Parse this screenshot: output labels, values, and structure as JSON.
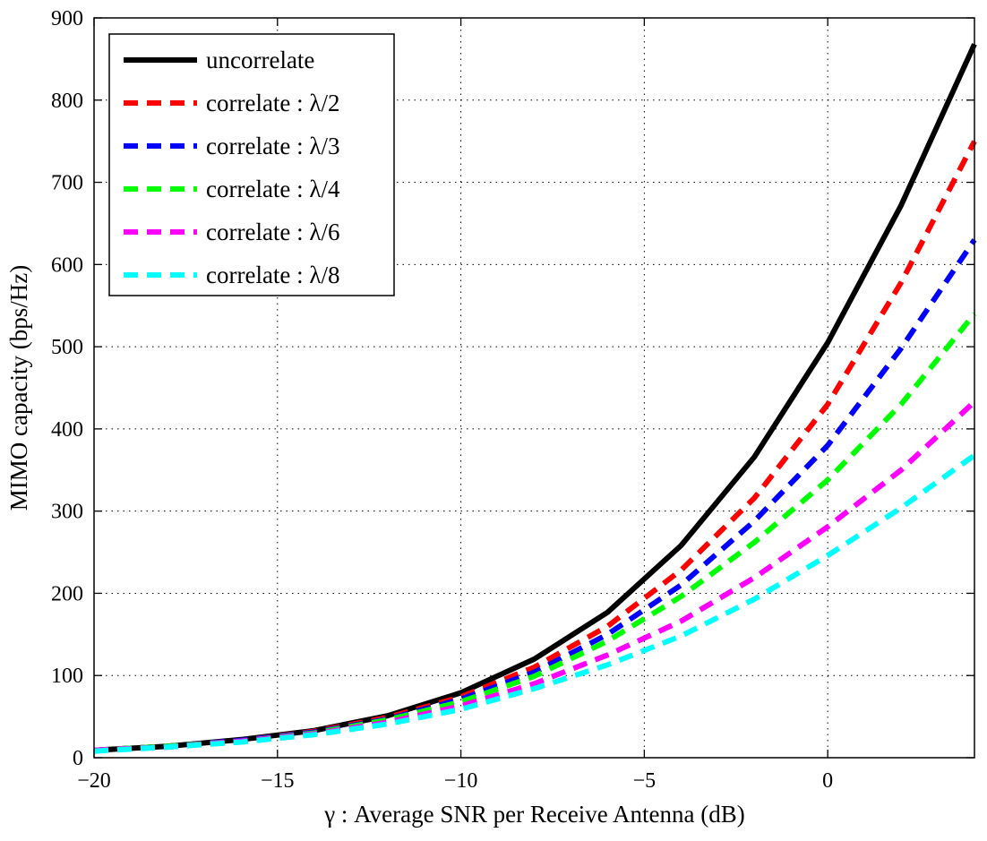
{
  "chart_data": {
    "type": "line",
    "title": "",
    "xlabel": "γ :  Average SNR per Receive Antenna (dB)",
    "ylabel": "MIMO capacity (bps/Hz)",
    "xlim": [
      -20,
      4
    ],
    "ylim": [
      0,
      900
    ],
    "xticks": [
      -20,
      -15,
      -10,
      -5,
      0
    ],
    "xtick_labels": [
      "−20",
      "−15",
      "−10",
      "−5",
      "0"
    ],
    "yticks": [
      0,
      100,
      200,
      300,
      400,
      500,
      600,
      700,
      800,
      900
    ],
    "ytick_labels": [
      "0",
      "100",
      "200",
      "300",
      "400",
      "500",
      "600",
      "700",
      "800",
      "900"
    ],
    "grid": true,
    "legend_position": "top-left",
    "x": [
      -20,
      -18,
      -16,
      -14,
      -12,
      -10,
      -8,
      -6,
      -4,
      -2,
      0,
      2,
      4
    ],
    "series": [
      {
        "name": "uncorrelate",
        "color": "#000000",
        "style": "solid",
        "values": [
          9,
          14,
          22,
          33,
          51,
          79,
          120,
          177,
          258,
          366,
          505,
          672,
          868
        ]
      },
      {
        "name": "correlate : λ/2",
        "color": "#ff0000",
        "style": "dashed",
        "values": [
          9,
          14,
          21,
          32,
          49,
          74,
          110,
          160,
          228,
          316,
          430,
          578,
          750
        ]
      },
      {
        "name": "correlate : λ/3",
        "color": "#0000ff",
        "style": "dashed",
        "values": [
          9,
          14,
          21,
          31,
          47,
          71,
          104,
          150,
          210,
          288,
          380,
          498,
          630
        ]
      },
      {
        "name": "correlate : λ/4",
        "color": "#00ff00",
        "style": "dashed",
        "values": [
          9,
          14,
          20,
          30,
          46,
          68,
          99,
          142,
          196,
          262,
          338,
          430,
          540
        ]
      },
      {
        "name": "correlate : λ/6",
        "color": "#ff00ff",
        "style": "dashed",
        "values": [
          9,
          13,
          20,
          29,
          43,
          63,
          90,
          125,
          166,
          219,
          281,
          350,
          433
        ]
      },
      {
        "name": "correlate : λ/8",
        "color": "#00ffff",
        "style": "dashed",
        "values": [
          8,
          13,
          19,
          28,
          41,
          59,
          84,
          113,
          148,
          193,
          246,
          304,
          368
        ]
      }
    ]
  }
}
